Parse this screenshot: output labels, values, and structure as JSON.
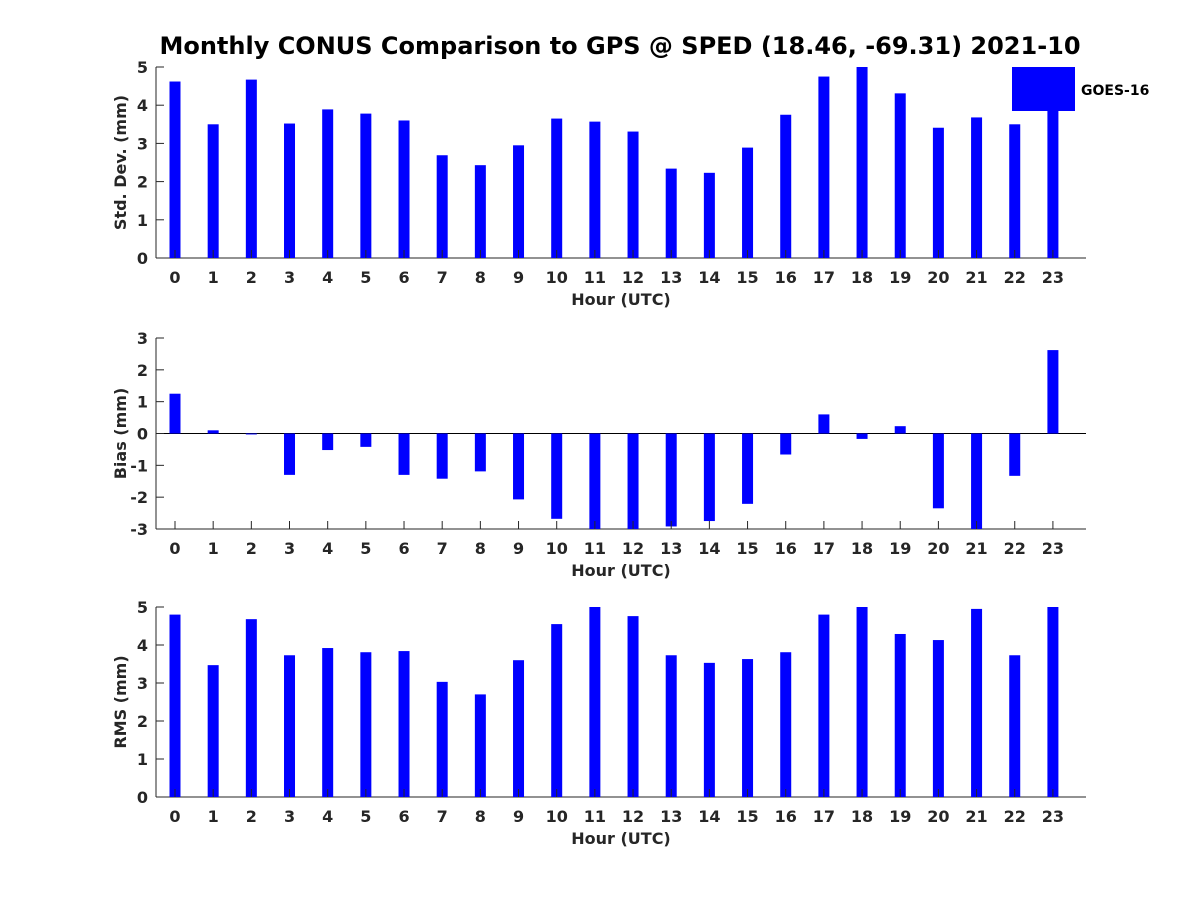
{
  "title": "Monthly CONUS Comparison to GPS @ SPED (18.46, -69.31) 2021-10",
  "legend": {
    "label": "GOES-16",
    "color": "#0000ff",
    "placement": "top-right"
  },
  "chart_data": [
    {
      "type": "bar",
      "xlabel": "Hour (UTC)",
      "ylabel": "Std. Dev. (mm)",
      "ylim": [
        0,
        5
      ],
      "yticks": [
        0,
        1,
        2,
        3,
        4,
        5
      ],
      "categories": [
        "0",
        "1",
        "2",
        "3",
        "4",
        "5",
        "6",
        "7",
        "8",
        "9",
        "10",
        "11",
        "12",
        "13",
        "14",
        "15",
        "16",
        "17",
        "18",
        "19",
        "20",
        "21",
        "22",
        "23"
      ],
      "series": [
        {
          "name": "GOES-16",
          "color": "#0000ff",
          "values": [
            4.62,
            3.5,
            4.67,
            3.52,
            3.89,
            3.78,
            3.6,
            2.69,
            2.43,
            2.95,
            3.65,
            3.57,
            3.31,
            2.34,
            2.23,
            2.89,
            3.75,
            4.75,
            5.0,
            4.31,
            3.41,
            3.68,
            3.5,
            5.0
          ]
        }
      ],
      "grid": false
    },
    {
      "type": "bar",
      "xlabel": "Hour (UTC)",
      "ylabel": "Bias (mm)",
      "ylim": [
        -3,
        3
      ],
      "yticks": [
        -3,
        -2,
        -1,
        0,
        1,
        2,
        3
      ],
      "categories": [
        "0",
        "1",
        "2",
        "3",
        "4",
        "5",
        "6",
        "7",
        "8",
        "9",
        "10",
        "11",
        "12",
        "13",
        "14",
        "15",
        "16",
        "17",
        "18",
        "19",
        "20",
        "21",
        "22",
        "23"
      ],
      "series": [
        {
          "name": "GOES-16",
          "color": "#0000ff",
          "values": [
            1.25,
            0.1,
            -0.03,
            -1.3,
            -0.52,
            -0.42,
            -1.3,
            -1.42,
            -1.19,
            -2.07,
            -2.68,
            -3.0,
            -3.0,
            -2.92,
            -2.75,
            -2.21,
            -0.66,
            0.6,
            -0.17,
            0.23,
            -2.35,
            -3.0,
            -1.33,
            2.62
          ]
        }
      ],
      "grid": false
    },
    {
      "type": "bar",
      "xlabel": "Hour (UTC)",
      "ylabel": "RMS (mm)",
      "ylim": [
        0,
        5
      ],
      "yticks": [
        0,
        1,
        2,
        3,
        4,
        5
      ],
      "categories": [
        "0",
        "1",
        "2",
        "3",
        "4",
        "5",
        "6",
        "7",
        "8",
        "9",
        "10",
        "11",
        "12",
        "13",
        "14",
        "15",
        "16",
        "17",
        "18",
        "19",
        "20",
        "21",
        "22",
        "23"
      ],
      "series": [
        {
          "name": "GOES-16",
          "color": "#0000ff",
          "values": [
            4.8,
            3.47,
            4.68,
            3.73,
            3.92,
            3.81,
            3.84,
            3.03,
            2.7,
            3.6,
            4.55,
            5.0,
            4.76,
            3.73,
            3.53,
            3.63,
            3.81,
            4.8,
            5.0,
            4.29,
            4.13,
            4.95,
            3.73,
            5.0
          ]
        }
      ],
      "grid": false
    }
  ]
}
